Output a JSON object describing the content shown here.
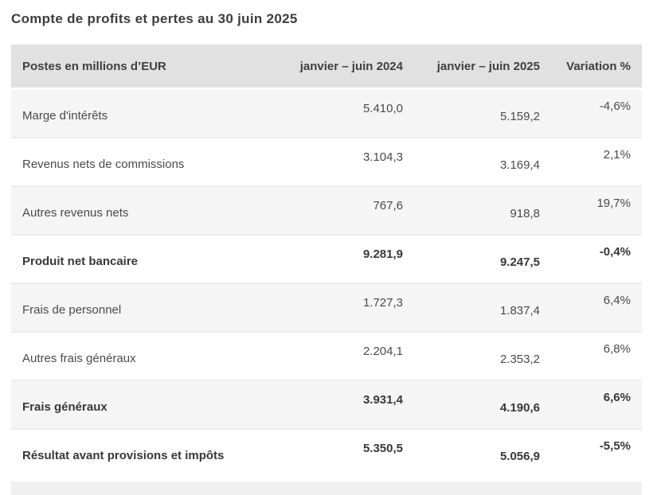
{
  "page": {
    "title": "Compte de profits et pertes au 30 juin 2025"
  },
  "table": {
    "headers": {
      "items": "Postes en millions d’EUR",
      "period_2024": "janvier – juin 2024",
      "period_2025": "janvier – juin 2025",
      "variation": "Variation %"
    },
    "rows": [
      {
        "label": "Marge d'intérêts",
        "y2024": "5.410,0",
        "y2025": "5.159,2",
        "variation": "-4,6%"
      },
      {
        "label": "Revenus nets de commissions",
        "y2024": "3.104,3",
        "y2025": "3.169,4",
        "variation": "2,1%"
      },
      {
        "label": "Autres revenus nets",
        "y2024": "767,6",
        "y2025": "918,8",
        "variation": "19,7%"
      },
      {
        "label": "Produit net bancaire",
        "y2024": "9.281,9",
        "y2025": "9.247,5",
        "variation": "-0,4%"
      },
      {
        "label": "Frais de personnel",
        "y2024": "1.727,3",
        "y2025": "1.837,4",
        "variation": "6,4%"
      },
      {
        "label": "Autres frais généraux",
        "y2024": "2.204,1",
        "y2025": "2.353,2",
        "variation": "6,8%"
      },
      {
        "label": "Frais généraux",
        "y2024": "3.931,4",
        "y2025": "4.190,6",
        "variation": "6,6%"
      },
      {
        "label": "Résultat avant provisions et impôts",
        "y2024": "5.350,5",
        "y2025": "5.056,9",
        "variation": "-5,5%"
      }
    ]
  },
  "chart_data": {
    "type": "table",
    "title": "Compte de profits et pertes au 30 juin 2025",
    "columns": [
      "Postes en millions d’EUR",
      "janvier – juin 2024",
      "janvier – juin 2025",
      "Variation %"
    ],
    "rows": [
      [
        "Marge d'intérêts",
        5410.0,
        5159.2,
        "-4,6%"
      ],
      [
        "Revenus nets de commissions",
        3104.3,
        3169.4,
        "2,1%"
      ],
      [
        "Autres revenus nets",
        767.6,
        918.8,
        "19,7%"
      ],
      [
        "Produit net bancaire",
        9281.9,
        9247.5,
        "-0,4%"
      ],
      [
        "Frais de personnel",
        1727.3,
        1837.4,
        "6,4%"
      ],
      [
        "Autres frais généraux",
        2204.1,
        2353.2,
        "6,8%"
      ],
      [
        "Frais généraux",
        3931.4,
        4190.6,
        "6,6%"
      ],
      [
        "Résultat avant provisions et impôts",
        5350.5,
        5056.9,
        "-5,5%"
      ]
    ],
    "bold_row_indices": [
      3,
      6,
      7
    ]
  },
  "colors": {
    "header_bg": "#e1e1e1",
    "row_alt_bg": "#f5f5f5",
    "row_bg": "#ffffff",
    "separator": "#ececec",
    "title_text": "#3d3d3d",
    "body_text": "#4a4a4a",
    "strong_text": "#383838",
    "bottom_band_bg": "#f0f0f0"
  }
}
